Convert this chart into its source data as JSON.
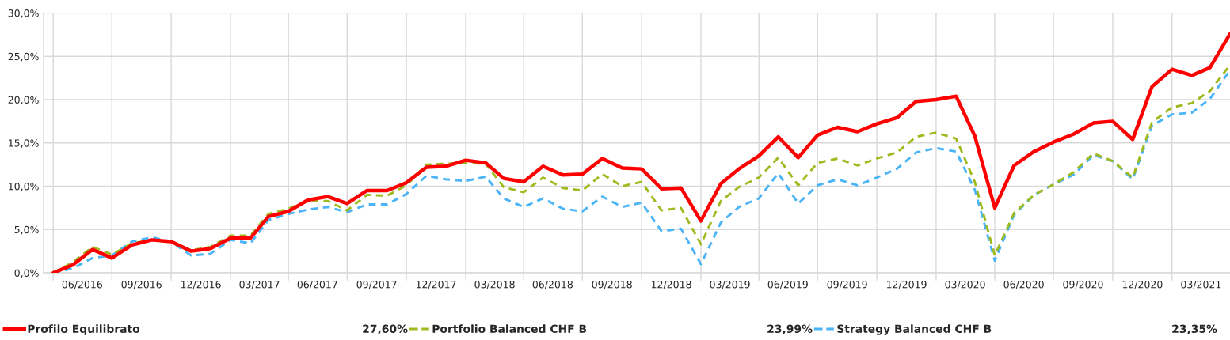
{
  "chart_data": {
    "type": "line",
    "x": [
      "2016-03-31",
      "2016-04-30",
      "2016-05-31",
      "2016-06-30",
      "2016-07-31",
      "2016-08-31",
      "2016-09-30",
      "2016-10-31",
      "2016-11-30",
      "2016-12-31",
      "2017-01-31",
      "2017-02-28",
      "2017-03-31",
      "2017-04-30",
      "2017-05-31",
      "2017-06-30",
      "2017-07-31",
      "2017-08-31",
      "2017-09-30",
      "2017-10-31",
      "2017-11-30",
      "2017-12-31",
      "2018-01-31",
      "2018-02-28",
      "2018-03-31",
      "2018-04-30",
      "2018-05-31",
      "2018-06-30",
      "2018-07-31",
      "2018-08-31",
      "2018-09-30",
      "2018-10-31",
      "2018-11-30",
      "2018-12-31",
      "2019-01-31",
      "2019-02-28",
      "2019-03-31",
      "2019-04-30",
      "2019-05-31",
      "2019-06-30",
      "2019-07-31",
      "2019-08-31",
      "2019-09-30",
      "2019-10-31",
      "2019-11-30",
      "2019-12-31",
      "2020-01-31",
      "2020-02-29",
      "2020-03-31",
      "2020-04-30",
      "2020-05-31",
      "2020-06-30",
      "2020-07-31",
      "2020-08-31",
      "2020-09-30",
      "2020-10-31",
      "2020-11-30",
      "2020-12-31",
      "2021-01-31",
      "2021-02-28",
      "2021-03-31"
    ],
    "series": [
      {
        "name": "Profilo Equilibrato",
        "color": "#ff0000",
        "line_style": "solid",
        "values": [
          0.0,
          0.9,
          2.7,
          1.7,
          3.2,
          3.8,
          3.6,
          2.5,
          2.8,
          4.0,
          4.0,
          6.5,
          7.1,
          8.4,
          8.8,
          8.0,
          9.5,
          9.5,
          10.4,
          12.2,
          12.3,
          13.0,
          12.7,
          10.9,
          10.5,
          12.3,
          11.3,
          11.4,
          13.2,
          12.1,
          12.0,
          9.7,
          9.8,
          6.0,
          10.3,
          12.0,
          13.5,
          15.7,
          13.3,
          15.9,
          16.8,
          16.3,
          17.2,
          17.9,
          19.8,
          20.0,
          20.4,
          15.8,
          7.5,
          12.4,
          14.0,
          15.1,
          16.0,
          17.3,
          17.5,
          15.4,
          21.5,
          23.5,
          22.8,
          23.7,
          27.6
        ]
      },
      {
        "name": "Portfolio Balanced CHF B",
        "color": "#9fba1f",
        "line_style": "dashed",
        "values": [
          0.0,
          1.2,
          3.0,
          2.1,
          3.4,
          3.8,
          3.5,
          2.6,
          3.0,
          4.3,
          4.3,
          6.8,
          7.4,
          8.3,
          8.3,
          7.2,
          9.0,
          8.9,
          10.1,
          12.5,
          12.6,
          12.7,
          12.6,
          9.9,
          9.3,
          11.0,
          9.8,
          9.5,
          11.4,
          10.0,
          10.5,
          7.2,
          7.5,
          3.3,
          8.3,
          9.9,
          11.0,
          13.3,
          10.1,
          12.7,
          13.2,
          12.4,
          13.2,
          13.9,
          15.7,
          16.2,
          15.5,
          10.5,
          2.0,
          6.9,
          9.0,
          10.2,
          11.6,
          13.8,
          12.9,
          11.0,
          17.4,
          19.1,
          19.6,
          21.0,
          24.0
        ]
      },
      {
        "name": "Strategy Balanced CHF B",
        "color": "#4ab4f7",
        "line_style": "dashed",
        "values": [
          0.0,
          0.5,
          1.7,
          2.0,
          3.6,
          4.1,
          3.6,
          2.0,
          2.2,
          3.8,
          3.4,
          6.1,
          6.8,
          7.3,
          7.6,
          7.0,
          7.9,
          7.9,
          9.1,
          11.2,
          10.8,
          10.6,
          11.1,
          8.6,
          7.6,
          8.6,
          7.4,
          7.1,
          8.8,
          7.6,
          8.1,
          4.8,
          5.1,
          1.0,
          5.8,
          7.6,
          8.6,
          11.5,
          8.0,
          10.1,
          10.8,
          10.1,
          11.0,
          12.0,
          13.9,
          14.4,
          14.0,
          9.6,
          1.4,
          6.7,
          9.0,
          10.2,
          11.3,
          13.6,
          12.9,
          10.8,
          17.0,
          18.3,
          18.5,
          20.1,
          23.4
        ]
      }
    ],
    "xlim": [
      "2016-03-16",
      "2021-03-31"
    ],
    "xticks": [
      {
        "value": "2016-03-31",
        "label": null
      },
      {
        "value": "2016-06-30",
        "label": null
      },
      {
        "value": "2016-09-30",
        "label": null
      },
      {
        "value": "2016-12-31",
        "label": null
      },
      {
        "value": "2017-03-31",
        "label": null
      },
      {
        "value": "2017-06-30",
        "label": null
      },
      {
        "value": "2017-09-30",
        "label": null
      },
      {
        "value": "2017-12-31",
        "label": null
      },
      {
        "value": "2018-03-31",
        "label": null
      },
      {
        "value": "2018-06-30",
        "label": null
      },
      {
        "value": "2018-09-30",
        "label": null
      },
      {
        "value": "2018-12-31",
        "label": null
      },
      {
        "value": "2019-03-31",
        "label": null
      },
      {
        "value": "2019-06-30",
        "label": null
      },
      {
        "value": "2019-09-30",
        "label": null
      },
      {
        "value": "2019-12-31",
        "label": null
      },
      {
        "value": "2020-03-31",
        "label": null
      },
      {
        "value": "2020-06-30",
        "label": null
      },
      {
        "value": "2020-09-30",
        "label": null
      },
      {
        "value": "2020-12-31",
        "label": null
      },
      {
        "value": "2016-05-15",
        "label": "06/2016"
      },
      {
        "value": "2016-08-15",
        "label": "09/2016"
      },
      {
        "value": "2016-11-15",
        "label": "12/2016"
      },
      {
        "value": "2017-02-14",
        "label": "03/2017"
      },
      {
        "value": "2017-05-15",
        "label": "06/2017"
      },
      {
        "value": "2017-08-15",
        "label": "09/2017"
      },
      {
        "value": "2017-11-15",
        "label": "12/2017"
      },
      {
        "value": "2018-02-14",
        "label": "03/2018"
      },
      {
        "value": "2018-05-15",
        "label": "06/2018"
      },
      {
        "value": "2018-08-15",
        "label": "09/2018"
      },
      {
        "value": "2018-11-15",
        "label": "12/2018"
      },
      {
        "value": "2019-02-14",
        "label": "03/2019"
      },
      {
        "value": "2019-05-15",
        "label": "06/2019"
      },
      {
        "value": "2019-08-15",
        "label": "09/2019"
      },
      {
        "value": "2019-11-15",
        "label": "12/2019"
      },
      {
        "value": "2020-02-14",
        "label": "03/2020"
      },
      {
        "value": "2020-05-15",
        "label": "06/2020"
      },
      {
        "value": "2020-08-15",
        "label": "09/2020"
      },
      {
        "value": "2020-11-15",
        "label": "12/2020"
      },
      {
        "value": "2021-02-14",
        "label": "03/2021"
      }
    ],
    "ylim": [
      0,
      30
    ],
    "yticks": [
      {
        "value": 0,
        "label": "0,0%"
      },
      {
        "value": 5,
        "label": "5,0%"
      },
      {
        "value": 10,
        "label": "10,0%"
      },
      {
        "value": 15,
        "label": "15,0%"
      },
      {
        "value": 20,
        "label": "20,0%"
      },
      {
        "value": 25,
        "label": "25,0%"
      },
      {
        "value": 30,
        "label": "30,0%"
      }
    ],
    "grid": true,
    "legend": "bottom",
    "annotations": [
      "27,60%",
      "23,99%",
      "23,35%"
    ]
  }
}
